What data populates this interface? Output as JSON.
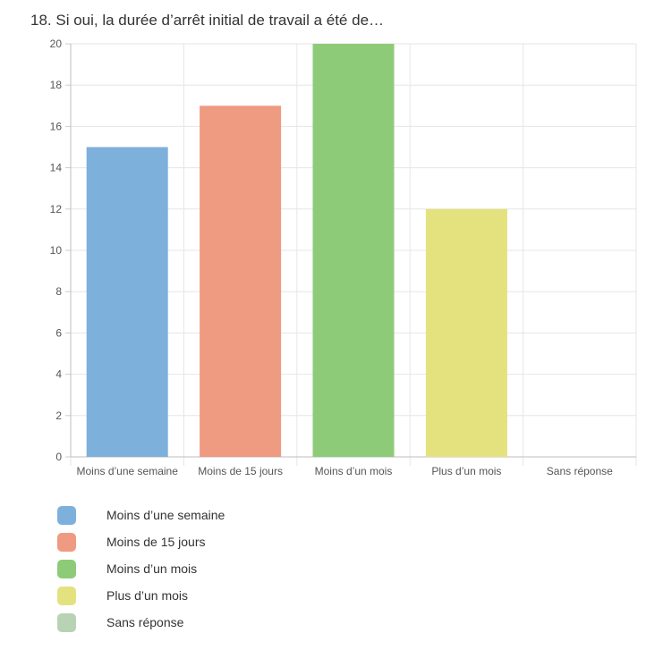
{
  "question": {
    "number": "18.",
    "text": "Si oui, la durée d’arrêt initial de travail a été de…"
  },
  "chart_data": {
    "type": "bar",
    "categories": [
      "Moins d’une semaine",
      "Moins de 15 jours",
      "Moins d’un mois",
      "Plus d’un mois",
      "Sans réponse"
    ],
    "values": [
      15,
      17,
      20,
      12,
      0
    ],
    "ylim": [
      0,
      20
    ],
    "yticks": [
      0,
      2,
      4,
      6,
      8,
      10,
      12,
      14,
      16,
      18,
      20
    ],
    "grid": true,
    "legend_position": "bottom",
    "colors": [
      "#7eb0dc",
      "#ee9b82",
      "#8ecb78",
      "#e4e27e",
      "#b8d3b4"
    ]
  }
}
